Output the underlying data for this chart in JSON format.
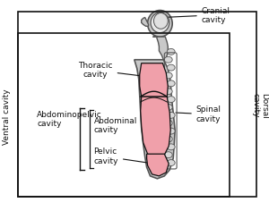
{
  "bg_color": "#ffffff",
  "body_fill": "#c8c8c8",
  "body_outline": "#555555",
  "cavity_fill": "#f0a0aa",
  "spine_fill": "#dddddd",
  "dark_color": "#111111",
  "labels": {
    "cranial_cavity": "Cranial\ncavity",
    "dorsal_cavity": "Dorsal\ncavity",
    "spinal_cavity": "Spinal\ncavity",
    "thoracic_cavity": "Thoracic\ncavity",
    "abdominopelvic_cavity": "Abdominopelvic\ncavity",
    "abdominal_cavity": "Abdominal\ncavity",
    "pelvic_cavity": "Pelvic\ncavity",
    "ventral_cavity": "Ventral cavity"
  },
  "font_size": 6.5
}
